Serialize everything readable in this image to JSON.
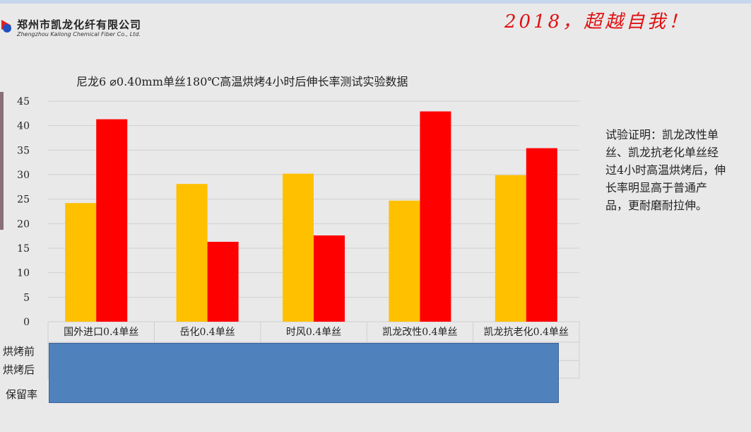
{
  "header": {
    "company_cn": "郑州市凯龙化纤有限公司",
    "company_en": "Zhengzhou Kailong Chemical Fiber Co., Ltd.",
    "slogan": "2018，超越自我！"
  },
  "note": "试验证明：凯龙改性单丝、凯龙抗老化单丝经过4小时高温烘烤后，伸长率明显高于普通产品，更耐磨耐拉伸。",
  "table_rows": [
    "烘烤前",
    "烘烤后",
    "保留率"
  ],
  "chart_data": {
    "type": "bar",
    "title": "尼龙6 ⌀0.40mm单丝180℃高温烘烤4小时后伸长率测试实验数据",
    "categories": [
      "国外进口0.4单丝",
      "岳化0.4单丝",
      "时风0.4单丝",
      "凯龙改性0.4单丝",
      "凯龙抗老化0.4单丝"
    ],
    "series": [
      {
        "name": "烘烤前",
        "color": "#ffc000",
        "values": [
          24.2,
          28.1,
          30.2,
          24.7,
          29.9
        ]
      },
      {
        "name": "烘烤后",
        "color": "#ff0000",
        "values": [
          41.3,
          16.3,
          17.6,
          42.9,
          35.4
        ]
      }
    ],
    "ylim": [
      0,
      45
    ],
    "yticks": [
      0,
      5,
      10,
      15,
      20,
      25,
      30,
      35,
      40,
      45
    ],
    "grid": true
  }
}
